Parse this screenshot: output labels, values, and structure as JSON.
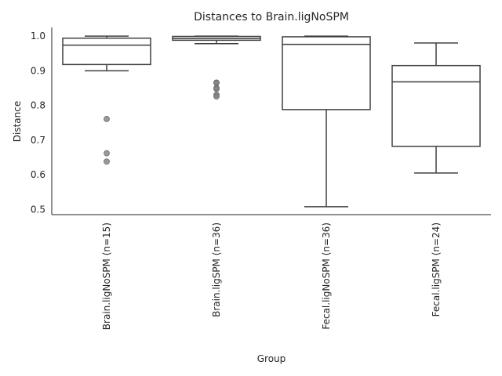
{
  "chart_data": {
    "type": "box",
    "title": "Distances to Brain.ligNoSPM",
    "xlabel": "Group",
    "ylabel": "Distance",
    "ylim": [
      0.485,
      1.025
    ],
    "yticks": [
      "0.5",
      "0.6",
      "0.7",
      "0.8",
      "0.9",
      "1.0"
    ],
    "grid": false,
    "categories": [
      "Brain.ligNoSPM (n=15)",
      "Brain.ligSPM (n=36)",
      "Fecal.ligNoSPM (n=36)",
      "Fecal.ligSPM (n=24)"
    ],
    "boxes": [
      {
        "whisker_low": 0.9,
        "q1": 0.918,
        "median": 0.974,
        "q3": 0.994,
        "whisker_high": 1.0,
        "outliers": [
          0.761,
          0.662,
          0.638
        ]
      },
      {
        "whisker_low": 0.978,
        "q1": 0.988,
        "median": 0.993,
        "q3": 0.999,
        "whisker_high": 1.0,
        "outliers": [
          0.866,
          0.865,
          0.85,
          0.848,
          0.831,
          0.826
        ]
      },
      {
        "whisker_low": 0.508,
        "q1": 0.788,
        "median": 0.976,
        "q3": 0.998,
        "whisker_high": 1.0,
        "outliers": []
      },
      {
        "whisker_low": 0.605,
        "q1": 0.682,
        "median": 0.868,
        "q3": 0.915,
        "whisker_high": 0.98,
        "outliers": []
      }
    ],
    "colors": {
      "box_edge": "#3f3f3f",
      "outlier": "#7f7f7f",
      "axis": "#262626",
      "text": "#262626"
    }
  }
}
